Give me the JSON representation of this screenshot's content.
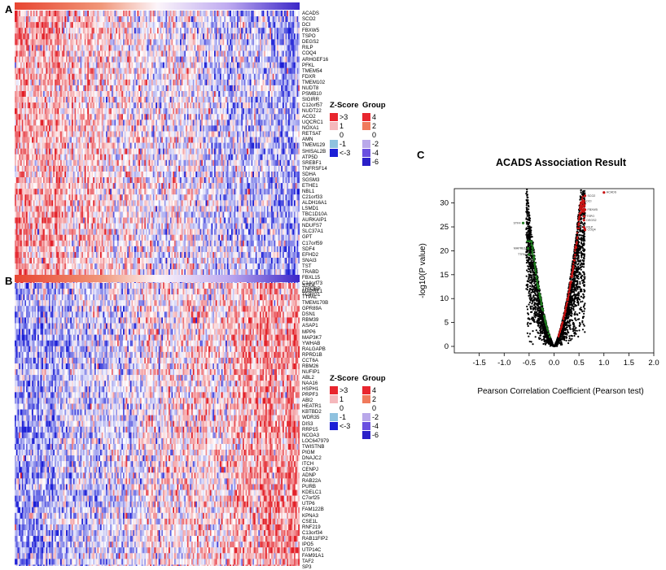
{
  "panels": {
    "a": {
      "letter": "A"
    },
    "b": {
      "letter": "B"
    },
    "c": {
      "letter": "C"
    }
  },
  "legend": {
    "zscore_title": "Z-Score",
    "group_title": "Group",
    "zscore_items": [
      {
        "label": ">3",
        "color": "#e8262e"
      },
      {
        "label": "1",
        "color": "#f5b8bc"
      },
      {
        "label": "0",
        "color": "#ffffff"
      },
      {
        "label": "-1",
        "color": "#8fc2df"
      },
      {
        "label": "<-3",
        "color": "#1c1fd6"
      }
    ],
    "group_items": [
      {
        "label": "4",
        "color": "#e8262e"
      },
      {
        "label": "2",
        "color": "#f07a5c"
      },
      {
        "label": "0",
        "color": "#ffffff"
      },
      {
        "label": "-2",
        "color": "#b9a8ea"
      },
      {
        "label": "-4",
        "color": "#6a4fe0"
      },
      {
        "label": "-6",
        "color": "#2a1fc8"
      }
    ]
  },
  "heatmap_a": {
    "genes": [
      "ACADS",
      "SCO2",
      "DCI",
      "FBXW5",
      "TSPO",
      "DEGS2",
      "RILP",
      "COQ4",
      "ARHGEF16",
      "PFKL",
      "TMEM54",
      "FDXR",
      "TMEM102",
      "NUDT8",
      "PSMB10",
      "SIGIRR",
      "C12orf57",
      "NUDT22",
      "ACO2",
      "UQCRC1",
      "NOXA1",
      "RETSAT",
      "AMN",
      "TMEM129",
      "SHISAL2B",
      "ATP5D",
      "SREBF1",
      "TNFRSF14",
      "SDHA",
      "SGSM3",
      "ETHE1",
      "NBL1",
      "C21orf33",
      "ALDH16A1",
      "LSMD1",
      "TBC1D10A",
      "AURKAIP1",
      "NDUFS7",
      "SLC37A1",
      "GPT",
      "C17orf59",
      "SDF4",
      "EFHD2",
      "SNAI3",
      "TST",
      "TRABD",
      "FBXL15",
      "C14orf73",
      "TRIOBP",
      "TCIRG1"
    ],
    "colorbar": "red-to-purple",
    "pattern": "positive-correlation"
  },
  "heatmap_b": {
    "genes": [
      "STK4",
      "MAPRE1",
      "TTPAL",
      "TMEM170B",
      "GPR89A",
      "DSN1",
      "RBM39",
      "ASAP1",
      "MPP6",
      "MAP3K7",
      "YWHAB",
      "RALGAPB",
      "RPRD1B",
      "CCT6A",
      "RBM26",
      "NUFIP1",
      "ABL2",
      "NAA16",
      "HSPH1",
      "PRPF3",
      "ABI2",
      "HEATR1",
      "KBTBD2",
      "WDR35",
      "DIS3",
      "RRP15",
      "NCOA3",
      "LOC647979",
      "TWISTNB",
      "PIGM",
      "DNAJC2",
      "ITCH",
      "CENPJ",
      "ADNP",
      "RAB22A",
      "PURB",
      "KDELC1",
      "C7orf25",
      "UTP6",
      "FAM122B",
      "KPNA3",
      "CSE1L",
      "RNF219",
      "C13orf34",
      "RAB11FIP2",
      "IPO5",
      "UTP14C",
      "FAM91A1",
      "TAF2",
      "SP3"
    ],
    "colorbar": "red-to-purple",
    "pattern": "negative-correlation"
  },
  "chart_data": {
    "type": "scatter",
    "title": "ACADS Association Result",
    "xlabel": "Pearson Correlation Coefficient (Pearson test)",
    "ylabel": "-log10(P value)",
    "xlim": [
      -2,
      2
    ],
    "ylim": [
      0,
      33
    ],
    "xticks": [
      "-1.5",
      "-1.0",
      "-0.5",
      "0.0",
      "0.5",
      "1.0",
      "1.5",
      "2.0"
    ],
    "yticks": [
      "0",
      "5",
      "10",
      "15",
      "20",
      "25",
      "30"
    ],
    "series": [
      {
        "name": "positive",
        "color": "#cc1111"
      },
      {
        "name": "negative",
        "color": "#1f7a1f"
      },
      {
        "name": "not significant",
        "color": "#000000"
      }
    ],
    "highlight_points": [
      {
        "label": "ACADS",
        "x": 1.0,
        "y": 32.2
      },
      {
        "label": "SCO2",
        "x": 0.62,
        "y": 31.5
      },
      {
        "label": "DCI",
        "x": 0.6,
        "y": 30.4
      },
      {
        "label": "FBXW5",
        "x": 0.62,
        "y": 28.6
      },
      {
        "label": "TSPO",
        "x": 0.6,
        "y": 27.2
      },
      {
        "label": "DEGS2",
        "x": 0.6,
        "y": 26.4
      },
      {
        "label": "RILP",
        "x": 0.6,
        "y": 24.9
      },
      {
        "label": "COQ4",
        "x": 0.62,
        "y": 24.4
      },
      {
        "label": "STK4",
        "x": -0.62,
        "y": 25.8
      },
      {
        "label": "MAPRE1",
        "x": -0.52,
        "y": 20.5
      },
      {
        "label": "TTPAL",
        "x": -0.5,
        "y": 19.2
      }
    ]
  }
}
